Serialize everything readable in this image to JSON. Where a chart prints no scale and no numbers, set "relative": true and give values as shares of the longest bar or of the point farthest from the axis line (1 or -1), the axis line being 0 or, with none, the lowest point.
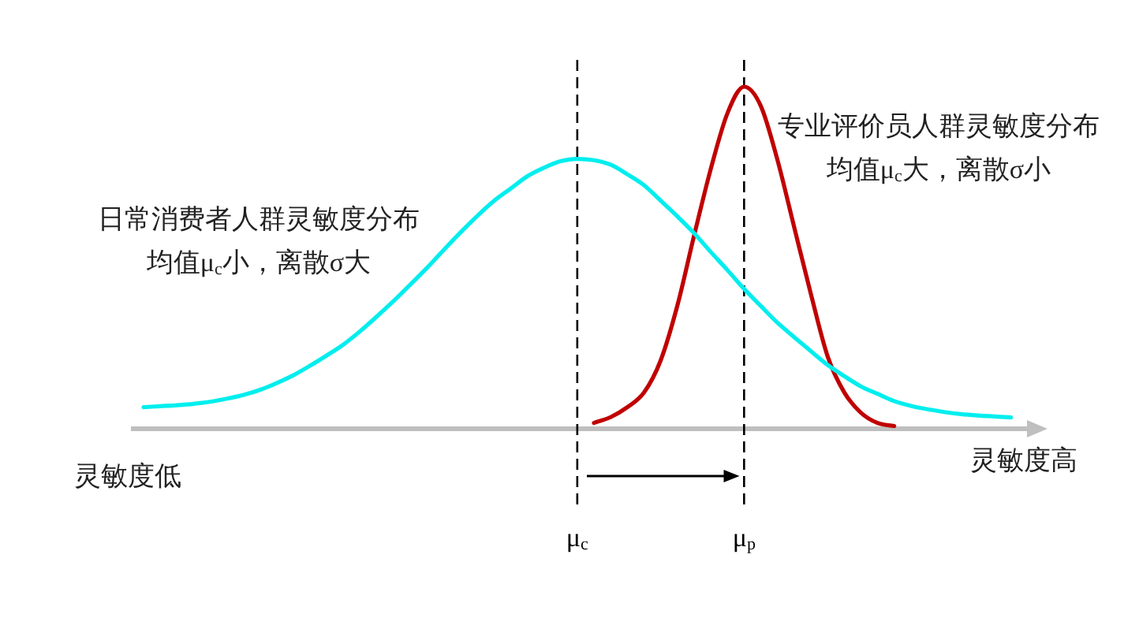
{
  "chart_data": {
    "type": "line",
    "relative": true,
    "categories": [
      null,
      null,
      null,
      null,
      null,
      null,
      null,
      null,
      null,
      null,
      null,
      null,
      null,
      null,
      null,
      null,
      null,
      null,
      null,
      null,
      null,
      null,
      null,
      null,
      null,
      null,
      "μ$_{c}$",
      null,
      null,
      null,
      null,
      null,
      null,
      null,
      null,
      null,
      "μ$_{p}$",
      null,
      null,
      null,
      null,
      null,
      null,
      null,
      null,
      null,
      null,
      null,
      null,
      null,
      null,
      null,
      null,
      null,
      null
    ],
    "series": [
      {
        "color": "#00eeee",
        "values": [
          0.063,
          0.066,
          0.069,
          0.073,
          0.079,
          0.088,
          0.099,
          0.114,
          0.134,
          0.157,
          0.185,
          0.215,
          0.247,
          0.286,
          0.329,
          0.374,
          0.422,
          0.471,
          0.523,
          0.574,
          0.622,
          0.666,
          0.702,
          0.738,
          0.763,
          0.782,
          0.789,
          0.785,
          0.772,
          0.744,
          0.712,
          0.667,
          0.621,
          0.572,
          0.517,
          0.464,
          0.409,
          0.359,
          0.31,
          0.268,
          0.227,
          0.187,
          0.154,
          0.124,
          0.102,
          0.081,
          0.067,
          0.057,
          0.049,
          0.043,
          0.039,
          0.036,
          0.033,
          null,
          null
        ]
      },
      {
        "color": "#c00000",
        "values": [
          null,
          null,
          null,
          null,
          null,
          null,
          null,
          null,
          null,
          null,
          null,
          null,
          null,
          null,
          null,
          null,
          null,
          null,
          null,
          null,
          null,
          null,
          null,
          null,
          null,
          null,
          null,
          0.017,
          0.034,
          0.063,
          0.106,
          0.2,
          0.36,
          0.564,
          0.759,
          0.922,
          1,
          0.944,
          0.786,
          0.59,
          0.395,
          0.213,
          0.107,
          0.047,
          0.017,
          0.008,
          null,
          null,
          null,
          null,
          null,
          null,
          null,
          null,
          null
        ]
      }
    ],
    "ref_lines": [
      {
        "axis": "x",
        "value": "μ$_{c}$",
        "color": "#000000",
        "line_style": "dashed"
      },
      {
        "axis": "x",
        "value": "μ$_{p}$",
        "color": "#000000",
        "line_style": "dashed"
      }
    ],
    "annotations": [
      "日常消费者人群灵敏度分布均值μ$_{c}$小，离散σ大",
      "专业评价员人群灵敏度分布均值μ$_{c}$大，离散σ小",
      "灵敏度低",
      "灵敏度高"
    ],
    "tick_labels": "x",
    "grid": false,
    "legend": false,
    "marker": "none",
    "line_style": "solid"
  }
}
